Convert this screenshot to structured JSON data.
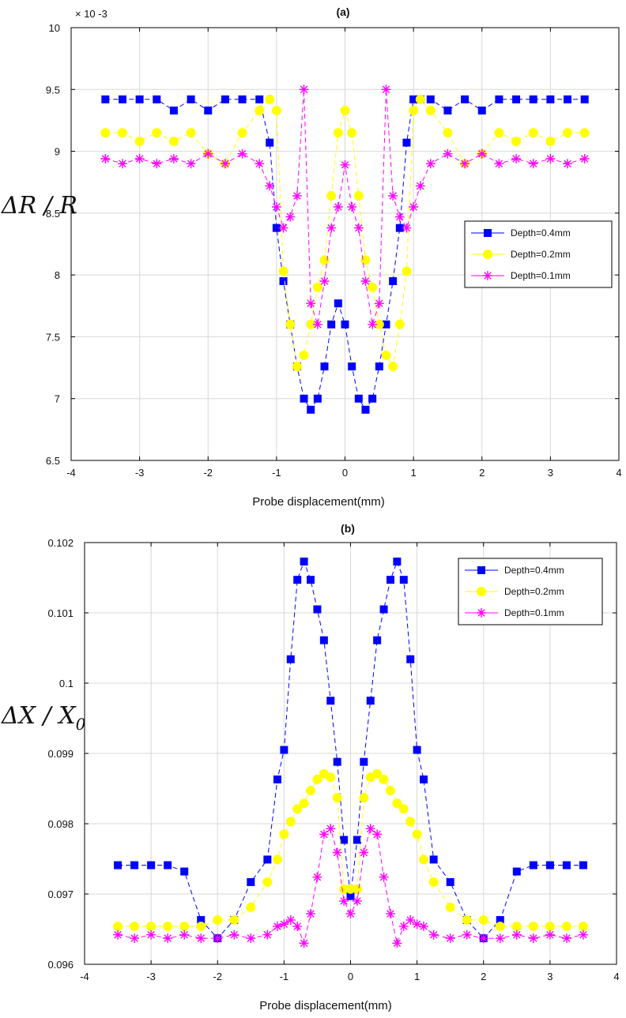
{
  "chart_data": [
    {
      "type": "line",
      "title": "(a)",
      "xlabel": "Probe displacement(mm)",
      "ylabel": "ΔR / R",
      "y_multiplier": "× 10 -3",
      "xlim": [
        -4,
        4
      ],
      "ylim": [
        6.5,
        10
      ],
      "xticks": [
        "-4",
        "-3",
        "-2",
        "-1",
        "0",
        "1",
        "2",
        "3",
        "4"
      ],
      "yticks": [
        "6.5",
        "7",
        "7.5",
        "8",
        "8.5",
        "9",
        "9.5",
        "10"
      ],
      "grid": true,
      "legend_position": "right",
      "x": [
        -3.5,
        -3.25,
        -3.0,
        -2.75,
        -2.5,
        -2.25,
        -2.0,
        -1.75,
        -1.5,
        -1.25,
        -1.1,
        -1.0,
        -0.9,
        -0.8,
        -0.7,
        -0.6,
        -0.5,
        -0.4,
        -0.3,
        -0.2,
        -0.1,
        0.0,
        0.1,
        0.2,
        0.3,
        0.4,
        0.5,
        0.6,
        0.7,
        0.8,
        0.9,
        1.0,
        1.1,
        1.25,
        1.5,
        1.75,
        2.0,
        2.25,
        2.5,
        2.75,
        3.0,
        3.25,
        3.5
      ],
      "series": [
        {
          "name": "Depth=0.4mm",
          "color": "#0000ff",
          "marker": "square",
          "values": [
            9.42,
            9.42,
            9.42,
            9.42,
            9.33,
            9.42,
            9.33,
            9.42,
            9.42,
            9.42,
            9.07,
            8.38,
            7.95,
            7.6,
            7.26,
            7.0,
            6.91,
            7.0,
            7.26,
            7.6,
            7.77,
            7.6,
            7.26,
            7.0,
            6.91,
            7.0,
            7.26,
            7.6,
            7.95,
            8.38,
            9.07,
            9.42,
            9.42,
            9.42,
            9.33,
            9.42,
            9.33,
            9.42,
            9.42,
            9.42,
            9.42,
            9.42,
            9.42
          ]
        },
        {
          "name": "Depth=0.2mm",
          "color": "#ffff00",
          "marker": "circle",
          "values": [
            9.15,
            9.15,
            9.08,
            9.15,
            9.08,
            9.15,
            8.98,
            8.9,
            9.15,
            9.33,
            9.42,
            9.33,
            8.03,
            7.6,
            7.26,
            7.35,
            7.6,
            7.9,
            8.12,
            8.64,
            9.15,
            9.33,
            9.15,
            8.64,
            8.12,
            7.9,
            7.6,
            7.35,
            7.26,
            7.6,
            8.03,
            9.33,
            9.42,
            9.33,
            9.15,
            8.9,
            8.98,
            9.15,
            9.08,
            9.15,
            9.08,
            9.15,
            9.15
          ]
        },
        {
          "name": "Depth=0.1mm",
          "color": "#ff00ff",
          "marker": "star",
          "values": [
            8.94,
            8.9,
            8.94,
            8.9,
            8.94,
            8.9,
            8.98,
            8.9,
            8.98,
            8.9,
            8.72,
            8.55,
            8.38,
            8.47,
            8.64,
            9.5,
            7.77,
            7.6,
            7.95,
            8.38,
            8.55,
            8.89,
            8.55,
            8.38,
            7.95,
            7.6,
            7.77,
            9.5,
            8.64,
            8.47,
            8.38,
            8.55,
            8.72,
            8.9,
            8.98,
            8.9,
            8.98,
            8.9,
            8.94,
            8.9,
            8.94,
            8.9,
            8.94
          ]
        }
      ]
    },
    {
      "type": "line",
      "title": "(b)",
      "xlabel": "Probe displacement(mm)",
      "ylabel": "ΔX / X",
      "ylabel_sub": "0",
      "xlim": [
        -4,
        4
      ],
      "ylim": [
        0.096,
        0.102
      ],
      "xticks": [
        "-4",
        "-3",
        "-2",
        "-1",
        "0",
        "1",
        "2",
        "3",
        "4"
      ],
      "yticks": [
        "0.096",
        "0.097",
        "0.098",
        "0.099",
        "0.1",
        "0.101",
        "0.102"
      ],
      "grid": true,
      "legend_position": "top-right",
      "x": [
        -3.5,
        -3.25,
        -3.0,
        -2.75,
        -2.5,
        -2.25,
        -2.0,
        -1.75,
        -1.5,
        -1.25,
        -1.1,
        -1.0,
        -0.9,
        -0.8,
        -0.7,
        -0.6,
        -0.5,
        -0.4,
        -0.3,
        -0.2,
        -0.1,
        0.0,
        0.1,
        0.2,
        0.3,
        0.4,
        0.5,
        0.6,
        0.7,
        0.8,
        0.9,
        1.0,
        1.1,
        1.25,
        1.5,
        1.75,
        2.0,
        2.25,
        2.5,
        2.75,
        3.0,
        3.25,
        3.5
      ],
      "series": [
        {
          "name": "Depth=0.4mm",
          "color": "#0000ff",
          "marker": "square",
          "values": [
            0.09741,
            0.09741,
            0.09741,
            0.09741,
            0.09732,
            0.09663,
            0.09637,
            0.09663,
            0.09717,
            0.09749,
            0.09863,
            0.09905,
            0.10034,
            0.10147,
            0.10173,
            0.10147,
            0.10105,
            0.10061,
            0.09975,
            0.09888,
            0.09777,
            0.09697,
            0.09777,
            0.09888,
            0.09975,
            0.10061,
            0.10105,
            0.10147,
            0.10173,
            0.10147,
            0.10034,
            0.09905,
            0.09863,
            0.09749,
            0.09717,
            0.09663,
            0.09637,
            0.09663,
            0.09732,
            0.09741,
            0.09741,
            0.09741,
            0.09741
          ]
        },
        {
          "name": "Depth=0.2mm",
          "color": "#ffff00",
          "marker": "circle",
          "values": [
            0.09654,
            0.09654,
            0.09654,
            0.09654,
            0.09654,
            0.09654,
            0.09663,
            0.09663,
            0.09681,
            0.09717,
            0.09749,
            0.09785,
            0.09803,
            0.09821,
            0.09829,
            0.09847,
            0.09863,
            0.09871,
            0.09866,
            0.09837,
            0.09707,
            0.09707,
            0.09707,
            0.09837,
            0.09866,
            0.09871,
            0.09863,
            0.09847,
            0.09829,
            0.09821,
            0.09803,
            0.09785,
            0.09749,
            0.09717,
            0.09681,
            0.09663,
            0.09663,
            0.09654,
            0.09654,
            0.09654,
            0.09654,
            0.09654,
            0.09654
          ]
        },
        {
          "name": "Depth=0.1mm",
          "color": "#ff00ff",
          "marker": "star",
          "values": [
            0.09642,
            0.09637,
            0.09642,
            0.09637,
            0.09642,
            0.09637,
            0.09637,
            0.09642,
            0.09637,
            0.09642,
            0.09654,
            0.09657,
            0.09663,
            0.09654,
            0.0963,
            0.09672,
            0.09724,
            0.09785,
            0.09793,
            0.09759,
            0.0969,
            0.09672,
            0.0969,
            0.09759,
            0.09793,
            0.09785,
            0.09724,
            0.09672,
            0.0963,
            0.09654,
            0.09663,
            0.09657,
            0.09654,
            0.09642,
            0.09637,
            0.09642,
            0.09637,
            0.09637,
            0.09642,
            0.09637,
            0.09642,
            0.09637,
            0.09642
          ]
        }
      ]
    }
  ]
}
